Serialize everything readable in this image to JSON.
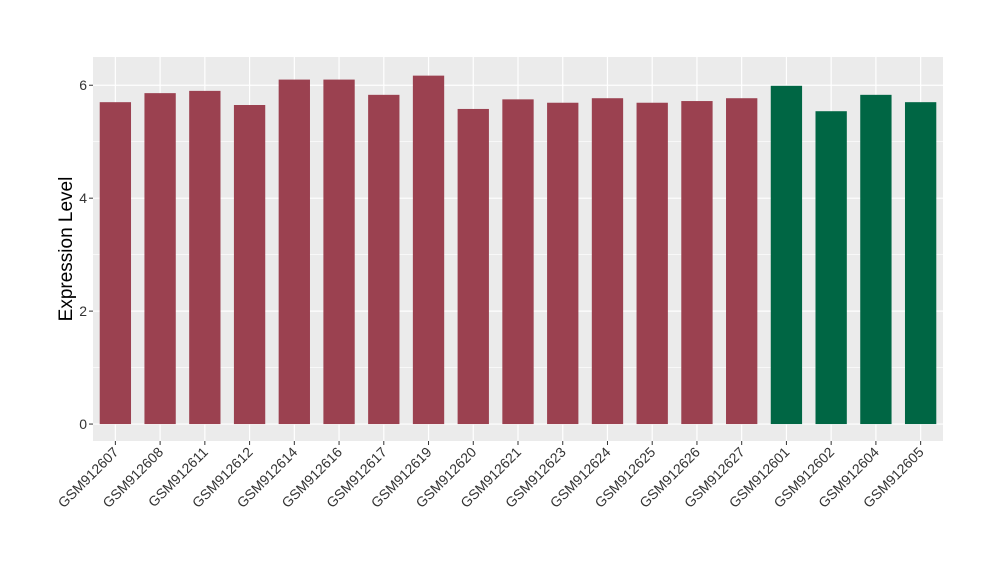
{
  "chart_data": {
    "type": "bar",
    "title": "",
    "xlabel": "",
    "ylabel": "Expression Level",
    "ylim": [
      -0.3,
      6.5
    ],
    "yticks": [
      0,
      2,
      4,
      6
    ],
    "grid": true,
    "legend": "none",
    "colors": {
      "group_a": "#9B4150",
      "group_b": "#006644",
      "panel_bg": "#EBEBEB",
      "grid": "#FFFFFF"
    },
    "categories": [
      "GSM912607",
      "GSM912608",
      "GSM912611",
      "GSM912612",
      "GSM912614",
      "GSM912616",
      "GSM912617",
      "GSM912619",
      "GSM912620",
      "GSM912621",
      "GSM912623",
      "GSM912624",
      "GSM912625",
      "GSM912626",
      "GSM912627",
      "GSM912601",
      "GSM912602",
      "GSM912604",
      "GSM912605"
    ],
    "values": [
      5.7,
      5.86,
      5.9,
      5.65,
      6.1,
      6.1,
      5.83,
      6.17,
      5.58,
      5.75,
      5.69,
      5.77,
      5.69,
      5.72,
      5.77,
      5.99,
      5.54,
      5.83,
      5.7
    ],
    "groups": [
      "a",
      "a",
      "a",
      "a",
      "a",
      "a",
      "a",
      "a",
      "a",
      "a",
      "a",
      "a",
      "a",
      "a",
      "a",
      "b",
      "b",
      "b",
      "b"
    ]
  }
}
